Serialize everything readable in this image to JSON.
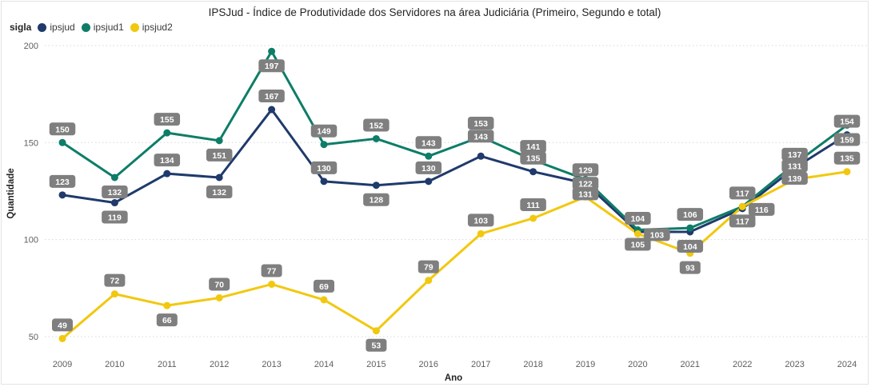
{
  "title": "IPSJud - Índice de Produtividade dos Servidores na área Judiciária (Primeiro, Segundo e total)",
  "legend": {
    "title": "sigla",
    "items": [
      {
        "label": "ipsjud",
        "color": "#1f3a6b"
      },
      {
        "label": "ipsjud1",
        "color": "#0e7d68"
      },
      {
        "label": "ipsjud2",
        "color": "#f2c80f"
      }
    ]
  },
  "axes": {
    "x_title": "Ano",
    "y_title": "Quantidade"
  },
  "chart_data": {
    "type": "line",
    "title": "IPSJud - Índice de Produtividade dos Servidores na área Judiciária (Primeiro, Segundo e total)",
    "xlabel": "Ano",
    "ylabel": "Quantidade",
    "categories": [
      2009,
      2010,
      2011,
      2012,
      2013,
      2014,
      2015,
      2016,
      2017,
      2018,
      2019,
      2020,
      2021,
      2022,
      2023,
      2024
    ],
    "yticks": [
      50,
      100,
      150,
      200
    ],
    "ylim": [
      40,
      212
    ],
    "grid": true,
    "legend_position": "top-left",
    "data_labels": true,
    "series": [
      {
        "name": "ipsjud",
        "color": "#1f3a6b",
        "values": [
          123,
          119,
          134,
          132,
          167,
          130,
          128,
          130,
          143,
          135,
          129,
          104,
          104,
          116,
          137,
          154
        ]
      },
      {
        "name": "ipsjud1",
        "color": "#0e7d68",
        "values": [
          150,
          132,
          155,
          151,
          197,
          149,
          152,
          143,
          153,
          141,
          131,
          105,
          106,
          117,
          139,
          159
        ]
      },
      {
        "name": "ipsjud2",
        "color": "#f2c80f",
        "values": [
          49,
          72,
          66,
          70,
          77,
          69,
          53,
          79,
          103,
          111,
          122,
          103,
          93,
          117,
          131,
          135
        ]
      }
    ]
  },
  "colors": {
    "label_chip_bg": "#7f7f7f",
    "label_chip_text": "#ffffff",
    "gridline": "#d8d8d8",
    "tick_text": "#605e5c",
    "axis_title_text": "#252423"
  }
}
